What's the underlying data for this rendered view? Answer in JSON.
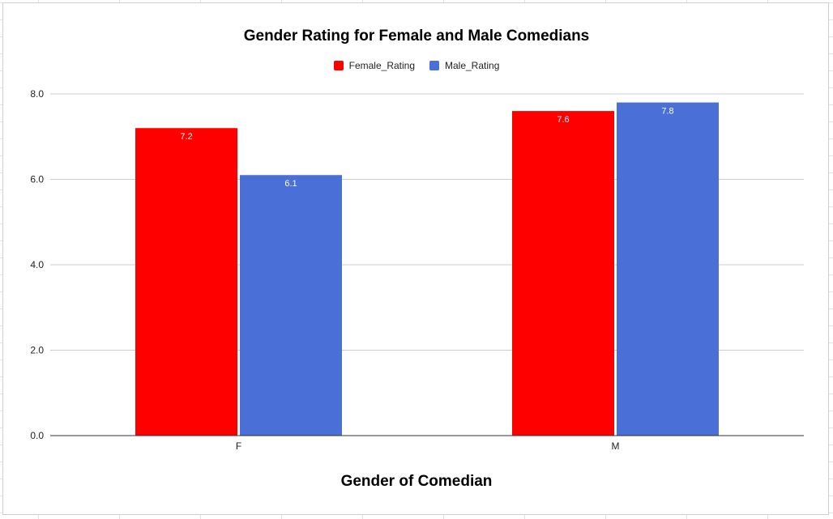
{
  "chart_data": {
    "type": "bar",
    "title": "Gender Rating for Female and Male Comedians",
    "xlabel": "Gender of Comedian",
    "ylabel": "",
    "categories": [
      "F",
      "M"
    ],
    "series": [
      {
        "name": "Female_Rating",
        "color": "#ff0000",
        "values": [
          7.2,
          7.6
        ]
      },
      {
        "name": "Male_Rating",
        "color": "#4a6fd6",
        "values": [
          6.1,
          7.8
        ]
      }
    ],
    "yticks": [
      "0.0",
      "2.0",
      "4.0",
      "6.0",
      "8.0"
    ],
    "ylim": [
      0,
      8
    ],
    "legend_position": "top",
    "grid": true
  }
}
